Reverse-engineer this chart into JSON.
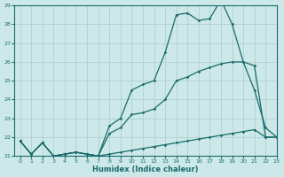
{
  "xlabel": "Humidex (Indice chaleur)",
  "ylabel": "",
  "bg_color": "#cce8e8",
  "grid_color": "#aacccc",
  "line_color": "#1a6b6b",
  "xlim": [
    -0.5,
    23
  ],
  "ylim": [
    21,
    29
  ],
  "xticks": [
    0,
    1,
    2,
    3,
    4,
    5,
    6,
    7,
    8,
    9,
    10,
    11,
    12,
    13,
    14,
    15,
    16,
    17,
    18,
    19,
    20,
    21,
    22,
    23
  ],
  "yticks": [
    21,
    22,
    23,
    24,
    25,
    26,
    27,
    28,
    29
  ],
  "series": [
    {
      "x": [
        0,
        1,
        2,
        3,
        4,
        5,
        6,
        7,
        8,
        9,
        10,
        11,
        12,
        13,
        14,
        15,
        16,
        17,
        18,
        19,
        20,
        21,
        22,
        23
      ],
      "y": [
        21.8,
        21.1,
        21.7,
        21.0,
        21.1,
        21.2,
        21.1,
        21.0,
        22.6,
        23.0,
        24.5,
        24.8,
        25.0,
        26.5,
        28.5,
        28.6,
        28.2,
        28.3,
        29.3,
        28.0,
        26.0,
        24.5,
        22.5,
        22.0
      ]
    },
    {
      "x": [
        0,
        1,
        2,
        3,
        4,
        5,
        6,
        7,
        8,
        9,
        10,
        11,
        12,
        13,
        14,
        15,
        16,
        17,
        18,
        19,
        20,
        21,
        22,
        23
      ],
      "y": [
        21.8,
        21.1,
        21.7,
        21.0,
        21.1,
        21.2,
        21.1,
        21.0,
        22.2,
        22.5,
        23.2,
        23.3,
        23.5,
        24.0,
        25.0,
        25.2,
        25.5,
        25.7,
        25.9,
        26.0,
        26.0,
        25.8,
        22.0,
        22.0
      ]
    },
    {
      "x": [
        0,
        1,
        2,
        3,
        4,
        5,
        6,
        7,
        8,
        9,
        10,
        11,
        12,
        13,
        14,
        15,
        16,
        17,
        18,
        19,
        20,
        21,
        22,
        23
      ],
      "y": [
        21.8,
        21.1,
        21.7,
        21.0,
        21.1,
        21.2,
        21.1,
        21.0,
        21.1,
        21.2,
        21.3,
        21.4,
        21.5,
        21.6,
        21.7,
        21.8,
        21.9,
        22.0,
        22.1,
        22.2,
        22.3,
        22.4,
        22.0,
        22.0
      ]
    }
  ]
}
